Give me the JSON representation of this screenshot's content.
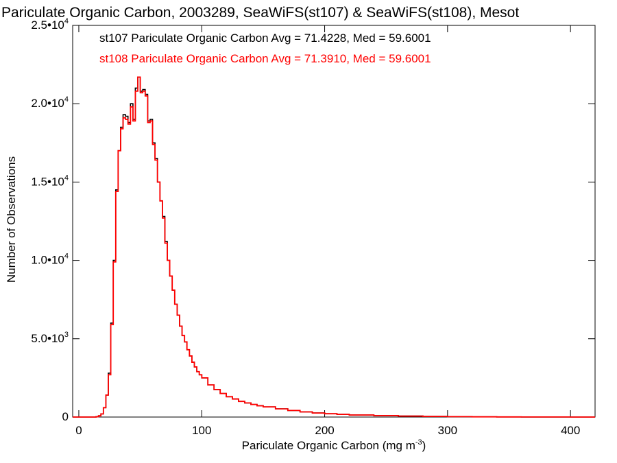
{
  "chart_data": {
    "type": "histogram",
    "title": "Pariculate Organic Carbon, 2003289, SeaWiFS(st107) & SeaWiFS(st108), Mesot",
    "xlabel": "Pariculate Organic Carbon (mg m",
    "xlabel_sup": "-3",
    "xlabel_close": ")",
    "ylabel": "Number of Observations",
    "xlim": [
      -5,
      420
    ],
    "ylim": [
      0,
      25000
    ],
    "grid": false,
    "x_ticks": [
      {
        "value": 0,
        "label": "0"
      },
      {
        "value": 100,
        "label": "100"
      },
      {
        "value": 200,
        "label": "200"
      },
      {
        "value": 300,
        "label": "300"
      },
      {
        "value": 400,
        "label": "400"
      }
    ],
    "y_ticks": [
      {
        "value": 0,
        "label": "0",
        "sup": ""
      },
      {
        "value": 5000,
        "label": "5.0•10",
        "sup": "3"
      },
      {
        "value": 10000,
        "label": "1.0•10",
        "sup": "4"
      },
      {
        "value": 15000,
        "label": "1.5•10",
        "sup": "4"
      },
      {
        "value": 20000,
        "label": "2.0•10",
        "sup": "4"
      },
      {
        "value": 25000,
        "label": "2.5•10",
        "sup": "4"
      }
    ],
    "legend_position": "top-left",
    "series": [
      {
        "name": "st107",
        "label": "st107 Pariculate Organic Carbon Avg = 71.4228, Med = 59.6001",
        "color": "#000000",
        "x": [
          -5,
          10,
          14,
          16,
          18,
          20,
          22,
          24,
          26,
          28,
          30,
          32,
          34,
          36,
          38,
          40,
          42,
          44,
          46,
          48,
          50,
          52,
          54,
          56,
          58,
          60,
          62,
          64,
          66,
          68,
          70,
          72,
          74,
          76,
          78,
          80,
          82,
          84,
          86,
          88,
          90,
          92,
          94,
          96,
          98,
          100,
          105,
          110,
          115,
          120,
          125,
          130,
          135,
          140,
          145,
          150,
          160,
          170,
          180,
          190,
          200,
          210,
          220,
          240,
          260,
          280,
          300,
          320,
          340,
          360,
          380,
          400,
          420
        ],
        "y": [
          0,
          0,
          20,
          80,
          200,
          600,
          1400,
          2800,
          6000,
          10000,
          14500,
          17000,
          18500,
          19300,
          19200,
          18800,
          20000,
          19000,
          21000,
          21700,
          20800,
          20900,
          20600,
          18900,
          19000,
          17500,
          16500,
          15000,
          13800,
          12800,
          11200,
          10000,
          9000,
          8100,
          7200,
          6500,
          5800,
          5200,
          4800,
          4300,
          3900,
          3500,
          3200,
          2900,
          2700,
          2500,
          2050,
          1750,
          1500,
          1300,
          1150,
          1000,
          900,
          800,
          720,
          650,
          520,
          420,
          330,
          260,
          210,
          170,
          130,
          90,
          60,
          40,
          25,
          15,
          10,
          6,
          4,
          2,
          1
        ]
      },
      {
        "name": "st108",
        "label": "st108 Pariculate Organic Carbon Avg = 71.3910, Med = 59.6001",
        "color": "#ff0000",
        "x": [
          -5,
          10,
          14,
          16,
          18,
          20,
          22,
          24,
          26,
          28,
          30,
          32,
          34,
          36,
          38,
          40,
          42,
          44,
          46,
          48,
          50,
          52,
          54,
          56,
          58,
          60,
          62,
          64,
          66,
          68,
          70,
          72,
          74,
          76,
          78,
          80,
          82,
          84,
          86,
          88,
          90,
          92,
          94,
          96,
          98,
          100,
          105,
          110,
          115,
          120,
          125,
          130,
          135,
          140,
          145,
          150,
          160,
          170,
          180,
          190,
          200,
          210,
          220,
          240,
          260,
          280,
          300,
          320,
          340,
          360,
          380,
          400,
          420
        ],
        "y": [
          0,
          0,
          20,
          80,
          200,
          600,
          1400,
          2700,
          5900,
          9900,
          14400,
          17000,
          18400,
          19100,
          19000,
          18700,
          19800,
          18900,
          20800,
          21700,
          20700,
          20800,
          20500,
          18800,
          18900,
          17400,
          16400,
          15000,
          13800,
          12700,
          11100,
          10000,
          9000,
          8100,
          7200,
          6500,
          5800,
          5200,
          4800,
          4300,
          3900,
          3500,
          3200,
          2900,
          2700,
          2500,
          2050,
          1750,
          1500,
          1300,
          1150,
          1000,
          900,
          800,
          720,
          650,
          520,
          420,
          330,
          260,
          210,
          170,
          130,
          90,
          60,
          40,
          25,
          15,
          10,
          6,
          4,
          2,
          1
        ]
      }
    ]
  }
}
